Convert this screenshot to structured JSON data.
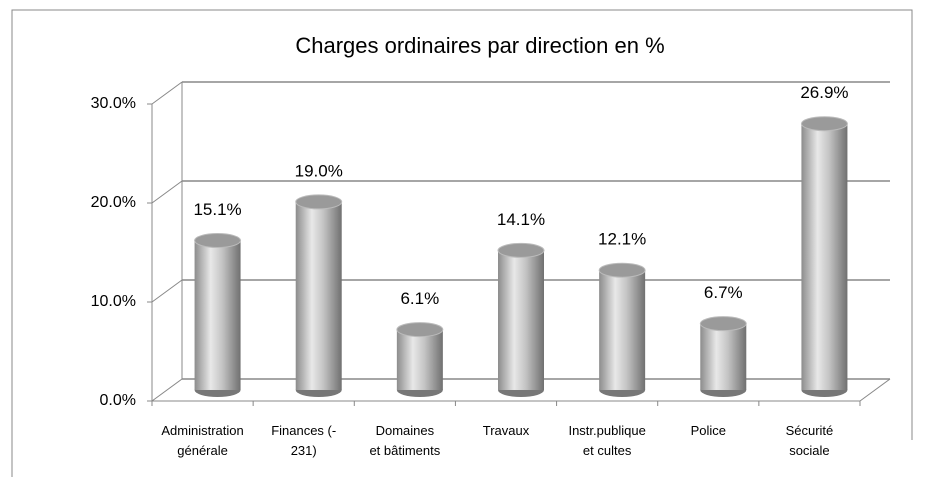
{
  "chart_data": {
    "type": "bar3d",
    "title": "Charges ordinaires par direction en %",
    "categories": [
      "Administration\ngénérale",
      "Finances (-\n231)",
      "Domaines\net bâtiments",
      "Travaux",
      "Instr.publique\net cultes",
      "Police",
      "Sécurité\nsociale"
    ],
    "values": [
      15.1,
      19.0,
      6.1,
      14.1,
      12.1,
      6.7,
      26.9
    ],
    "value_labels": [
      "15.1%",
      "19.0%",
      "6.1%",
      "14.1%",
      "12.1%",
      "6.7%",
      "26.9%"
    ],
    "color": "#a6a6a6",
    "ylim": [
      0,
      30
    ],
    "yticks": [
      {
        "value": 0,
        "label": "0.0%"
      },
      {
        "value": 10,
        "label": "10.0%"
      },
      {
        "value": 20,
        "label": "20.0%"
      },
      {
        "value": 30,
        "label": "30.0%"
      }
    ],
    "grid": true
  }
}
